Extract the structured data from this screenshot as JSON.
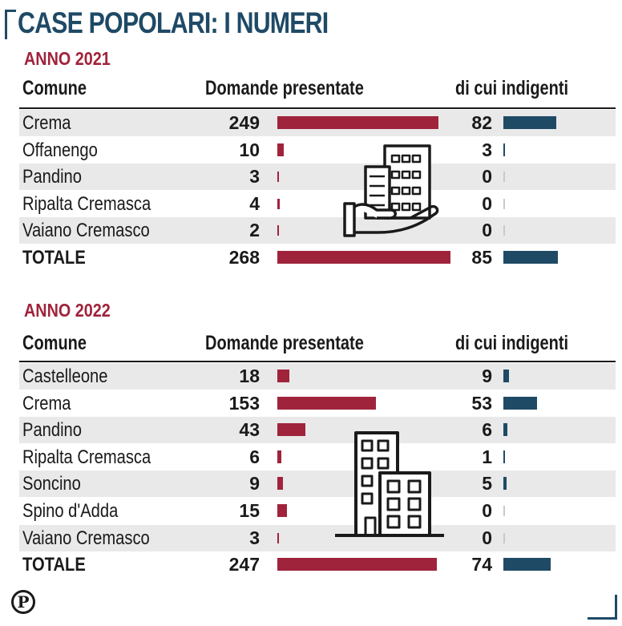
{
  "header": {
    "title": "CASE POPOLARI: I NUMERI"
  },
  "chart_data": [
    {
      "type": "bar",
      "title": "ANNO 2021",
      "columns": [
        "Comune",
        "Domande presentate",
        "di cui indigenti"
      ],
      "categories": [
        "Crema",
        "Offanengo",
        "Pandino",
        "Ripalta Cremasca",
        "Vaiano Cremasco",
        "TOTALE"
      ],
      "series": [
        {
          "name": "Domande presentate",
          "values": [
            249,
            10,
            3,
            4,
            2,
            268
          ],
          "color": "#a0233c"
        },
        {
          "name": "di cui indigenti",
          "values": [
            82,
            3,
            0,
            0,
            0,
            85
          ],
          "color": "#1f4a66"
        }
      ]
    },
    {
      "type": "bar",
      "title": "ANNO 2022",
      "columns": [
        "Comune",
        "Domande presentate",
        "di cui indigenti"
      ],
      "categories": [
        "Castelleone",
        "Crema",
        "Pandino",
        "Ripalta Cremasca",
        "Soncino",
        "Spino d'Adda",
        "Vaiano Cremasco",
        "TOTALE"
      ],
      "series": [
        {
          "name": "Domande presentate",
          "values": [
            18,
            153,
            43,
            6,
            9,
            15,
            3,
            247
          ],
          "color": "#a0233c"
        },
        {
          "name": "di cui indigenti",
          "values": [
            9,
            53,
            6,
            1,
            5,
            0,
            0,
            74
          ],
          "color": "#1f4a66"
        }
      ]
    }
  ],
  "icons": [
    "hand-holding-building-icon",
    "apartment-building-icon",
    "publisher-logo-icon"
  ],
  "logo": {
    "letter": "P"
  },
  "colors": {
    "accent_red": "#a0233c",
    "accent_blue": "#1f4a66",
    "row_shade": "#e9e9e9"
  }
}
